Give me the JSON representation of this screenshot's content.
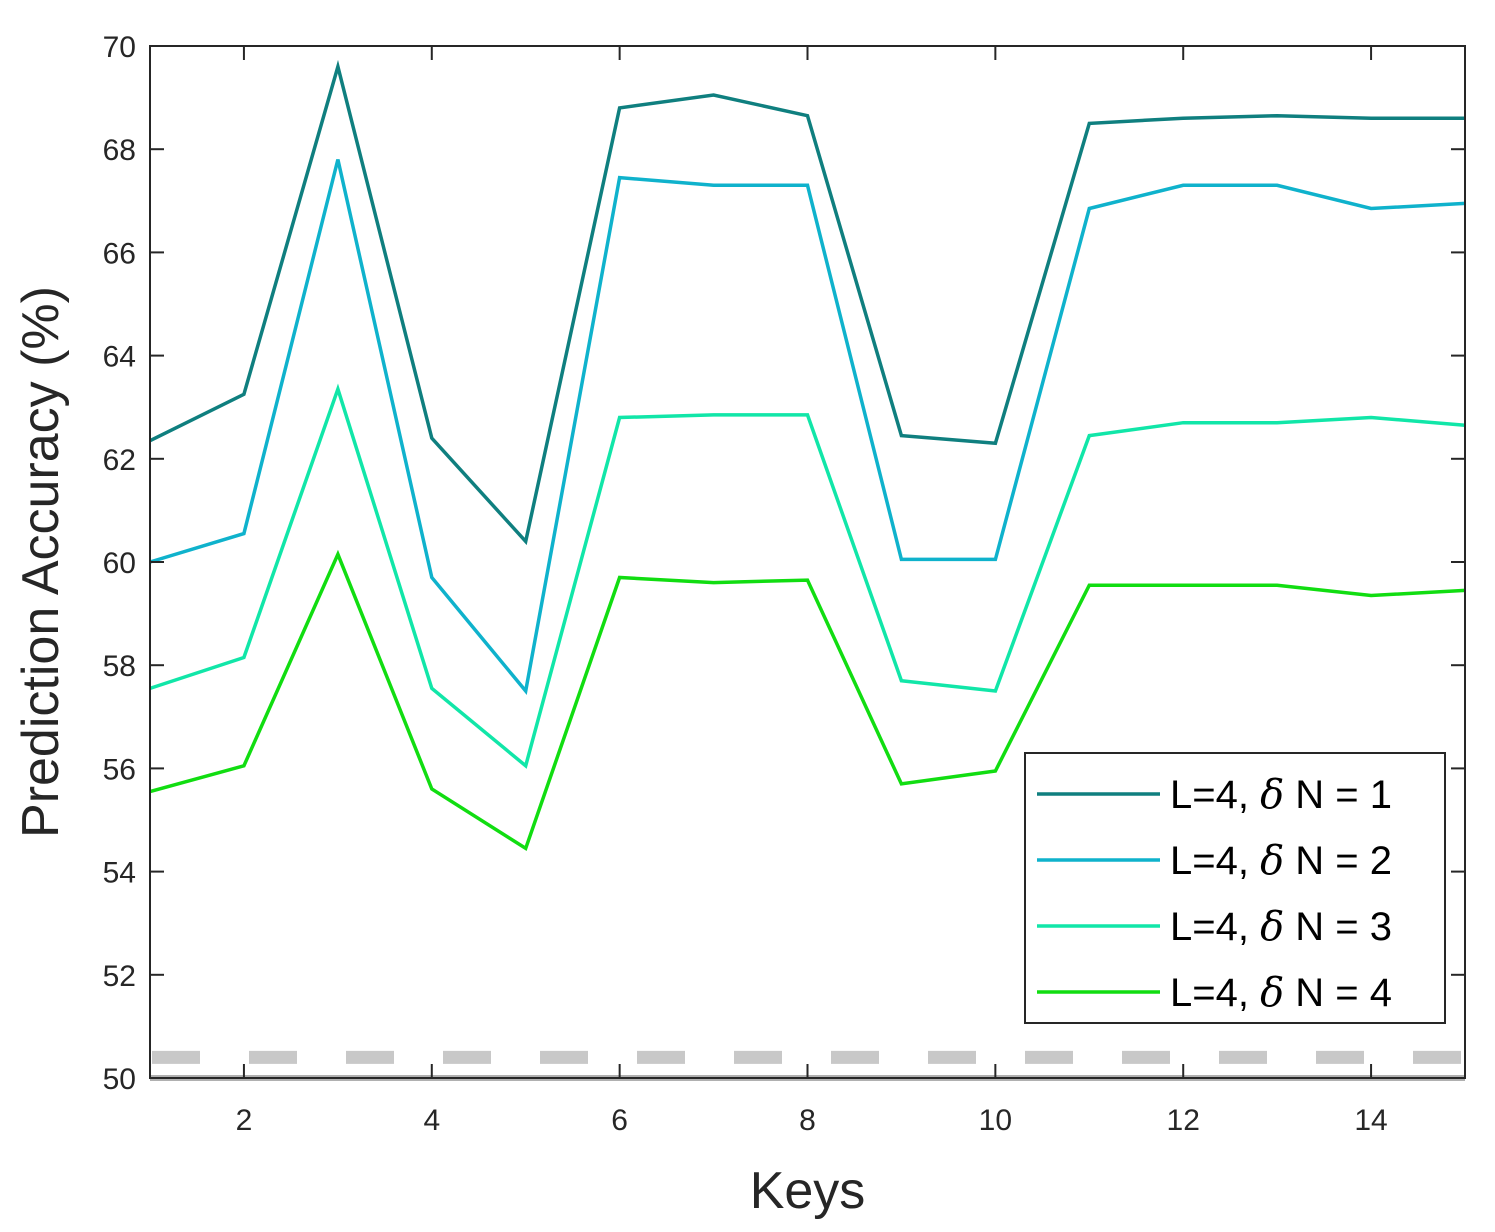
{
  "chart_data": {
    "type": "line",
    "title": "",
    "xlabel": "Keys",
    "ylabel": "Prediction Accuracy (%)",
    "xlim": [
      1,
      15
    ],
    "ylim": [
      50,
      70
    ],
    "xticks": [
      2,
      4,
      6,
      8,
      10,
      12,
      14
    ],
    "yticks": [
      50,
      52,
      54,
      56,
      58,
      60,
      62,
      64,
      66,
      68,
      70
    ],
    "grid": false,
    "legend_position": "bottom-right",
    "x": [
      1,
      2,
      3,
      4,
      5,
      6,
      7,
      8,
      9,
      10,
      11,
      12,
      13,
      14,
      15
    ],
    "series": [
      {
        "name": "L=4, δ N = 1",
        "legend_prefix": "L=4,",
        "legend_symbol": "δ",
        "legend_suffix": "N = 1",
        "color": "#0f7f7f",
        "values": [
          62.35,
          63.25,
          69.6,
          62.4,
          60.4,
          68.8,
          69.05,
          68.65,
          62.45,
          62.3,
          68.5,
          68.6,
          68.65,
          68.6,
          68.6
        ]
      },
      {
        "name": "L=4, δ N = 2",
        "legend_prefix": "L=4,",
        "legend_symbol": "δ",
        "legend_suffix": "N = 2",
        "color": "#0fb2cc",
        "values": [
          60.0,
          60.55,
          67.8,
          59.7,
          57.5,
          67.45,
          67.3,
          67.3,
          60.05,
          60.05,
          66.85,
          67.3,
          67.3,
          66.85,
          66.95
        ]
      },
      {
        "name": "L=4, δ N = 3",
        "legend_prefix": "L=4,",
        "legend_symbol": "δ",
        "legend_suffix": "N = 3",
        "color": "#11e6a8",
        "values": [
          57.55,
          58.15,
          63.35,
          57.55,
          56.05,
          62.8,
          62.85,
          62.85,
          57.7,
          57.5,
          62.45,
          62.7,
          62.7,
          62.8,
          62.65
        ]
      },
      {
        "name": "L=4, δ N = 4",
        "legend_prefix": "L=4,",
        "legend_symbol": "δ",
        "legend_suffix": "N = 4",
        "color": "#11dd11",
        "values": [
          55.55,
          56.05,
          60.15,
          55.6,
          54.45,
          59.7,
          59.6,
          59.65,
          55.7,
          55.95,
          59.55,
          59.55,
          59.55,
          59.35,
          59.45
        ]
      }
    ],
    "reference_lines": [
      {
        "style": "dashed",
        "color": "#c8c8c8",
        "y": 50.4
      },
      {
        "style": "solid",
        "color": "#b0b0b0",
        "y": 50.0
      }
    ]
  }
}
